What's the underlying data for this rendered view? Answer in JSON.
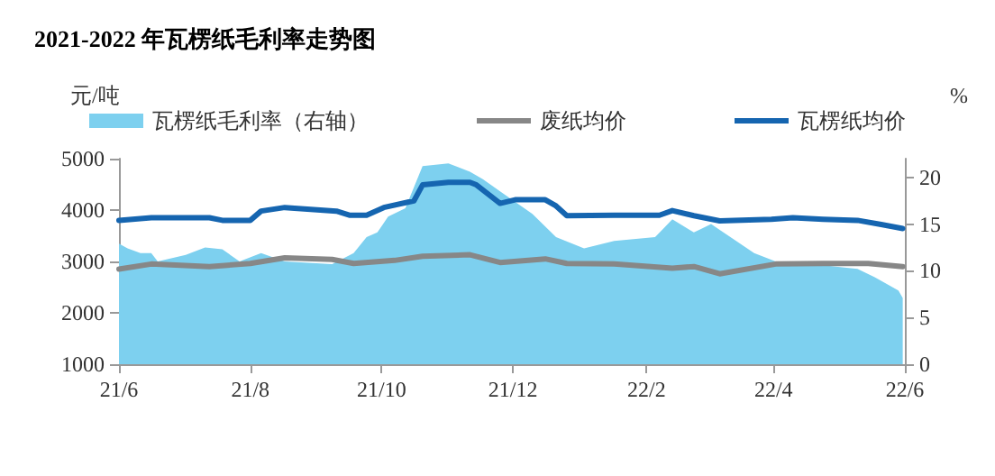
{
  "chart_data": {
    "type": "line",
    "title": "2021-2022 年瓦楞纸毛利率走势图",
    "ylabel": "元/吨",
    "y2label": "%",
    "xlim": [
      "2021-06-01",
      "2022-06-01"
    ],
    "xticks": [
      {
        "value": "2021-06-01",
        "label": "21/6"
      },
      {
        "value": "2021-08-01",
        "label": "21/8"
      },
      {
        "value": "2021-10-01",
        "label": "21/10"
      },
      {
        "value": "2021-12-01",
        "label": "21/12"
      },
      {
        "value": "2022-02-01",
        "label": "22/2"
      },
      {
        "value": "2022-04-01",
        "label": "22/4"
      },
      {
        "value": "2022-06-01",
        "label": "22/6"
      }
    ],
    "ylim": [
      1000,
      5000
    ],
    "yticks": [
      1000,
      2000,
      3000,
      4000,
      5000
    ],
    "y2lim": [
      0,
      22
    ],
    "y2ticks": [
      0,
      5,
      10,
      15,
      20
    ],
    "grid": false,
    "legend": "top",
    "marker": "none",
    "line_style": "solid",
    "series": [
      {
        "name": "瓦楞纸毛利率（右轴）",
        "type": "area",
        "axis": "y2",
        "color": "#7dd0ef",
        "x": [
          "2021-06-01",
          "2021-06-05",
          "2021-06-11",
          "2021-06-16",
          "2021-06-19",
          "2021-07-02",
          "2021-07-11",
          "2021-07-19",
          "2021-07-27",
          "2021-08-06",
          "2021-08-17",
          "2021-09-08",
          "2021-09-18",
          "2021-09-24",
          "2021-09-29",
          "2021-10-04",
          "2021-10-12",
          "2021-10-20",
          "2021-11-01",
          "2021-11-11",
          "2021-11-17",
          "2021-11-25",
          "2021-12-10",
          "2021-12-21",
          "2022-01-03",
          "2022-01-17",
          "2022-02-05",
          "2022-02-13",
          "2022-02-23",
          "2022-03-03",
          "2022-03-12",
          "2022-03-23",
          "2022-04-02",
          "2022-04-24",
          "2022-05-10",
          "2022-05-18",
          "2022-05-29",
          "2022-05-31"
        ],
        "values": [
          12.9,
          12.4,
          11.9,
          11.9,
          11.0,
          11.7,
          12.5,
          12.3,
          11.0,
          11.9,
          11.0,
          10.7,
          11.9,
          13.6,
          14.1,
          15.8,
          16.7,
          21.2,
          21.5,
          20.6,
          19.8,
          18.5,
          16.1,
          13.6,
          12.4,
          13.2,
          13.6,
          15.5,
          14.1,
          15.0,
          13.6,
          11.9,
          11.0,
          10.6,
          10.2,
          9.3,
          7.9,
          7.1
        ]
      },
      {
        "name": "废纸均价",
        "color": "#878787",
        "x": [
          "2021-06-01",
          "2021-06-16",
          "2021-07-13",
          "2021-08-01",
          "2021-08-17",
          "2021-09-08",
          "2021-09-18",
          "2021-10-07",
          "2021-10-20",
          "2021-11-11",
          "2021-11-25",
          "2021-12-16",
          "2021-12-26",
          "2022-01-17",
          "2022-02-13",
          "2022-02-23",
          "2022-03-07",
          "2022-04-02",
          "2022-04-24",
          "2022-05-15",
          "2022-05-31"
        ],
        "values": [
          2850,
          2950,
          2900,
          2960,
          3070,
          3040,
          2960,
          3020,
          3100,
          3130,
          2980,
          3050,
          2960,
          2950,
          2870,
          2900,
          2760,
          2950,
          2960,
          2960,
          2900
        ]
      },
      {
        "name": "瓦楞纸均价",
        "color": "#1565b0",
        "x": [
          "2021-06-01",
          "2021-06-16",
          "2021-07-13",
          "2021-07-19",
          "2021-08-01",
          "2021-08-06",
          "2021-08-17",
          "2021-09-10",
          "2021-09-16",
          "2021-09-24",
          "2021-10-02",
          "2021-10-16",
          "2021-10-20",
          "2021-11-01",
          "2021-11-11",
          "2021-11-14",
          "2021-11-25",
          "2021-12-02",
          "2021-12-16",
          "2021-12-21",
          "2021-12-26",
          "2022-01-17",
          "2022-02-07",
          "2022-02-13",
          "2022-02-23",
          "2022-03-07",
          "2022-03-31",
          "2022-04-10",
          "2022-04-24",
          "2022-05-10",
          "2022-05-21",
          "2022-05-31"
        ],
        "values": [
          3800,
          3850,
          3850,
          3800,
          3800,
          3980,
          4050,
          3980,
          3900,
          3900,
          4050,
          4180,
          4490,
          4540,
          4540,
          4490,
          4130,
          4200,
          4200,
          4080,
          3890,
          3900,
          3900,
          3990,
          3890,
          3790,
          3820,
          3850,
          3820,
          3800,
          3720,
          3640
        ]
      }
    ]
  }
}
